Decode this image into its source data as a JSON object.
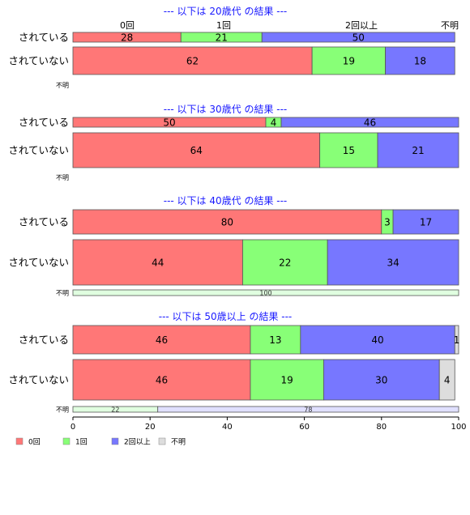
{
  "chart_data": {
    "type": "bar",
    "orientation": "horizontal-stacked-percent",
    "categories": [
      "0回",
      "1回",
      "2回以上",
      "不明"
    ],
    "colors": {
      "0回": "#ff7777",
      "1回": "#88ff77",
      "2回以上": "#7777ff",
      "不明": "#dddddd"
    },
    "xlim": [
      0,
      100
    ],
    "xticks": [
      0,
      20,
      40,
      60,
      80,
      100
    ],
    "legend_position": "bottom-left",
    "legend": [
      {
        "name": "0回",
        "color": "#ff7777"
      },
      {
        "name": "1回",
        "color": "#88ff77"
      },
      {
        "name": "2回以上",
        "color": "#7777ff"
      },
      {
        "name": "不明",
        "color": "#dddddd"
      }
    ],
    "panels": [
      {
        "title": "--- 以下は 20歳代 の結果 ---",
        "category_header": [
          "0回",
          "1回",
          "2回以上",
          "不明"
        ],
        "rows": [
          {
            "label": "されている",
            "values": [
              28,
              21,
              50,
              0
            ]
          },
          {
            "label": "されていない",
            "values": [
              62,
              19,
              18,
              0
            ]
          },
          {
            "label": "不明",
            "values": [],
            "small": true
          }
        ]
      },
      {
        "title": "--- 以下は 30歳代 の結果 ---",
        "rows": [
          {
            "label": "されている",
            "values": [
              50,
              4,
              46,
              0
            ]
          },
          {
            "label": "されていない",
            "values": [
              64,
              15,
              21,
              0
            ]
          },
          {
            "label": "不明",
            "values": [],
            "small": true
          }
        ]
      },
      {
        "title": "--- 以下は 40歳代 の結果 ---",
        "rows": [
          {
            "label": "されている",
            "values": [
              80,
              3,
              17,
              0
            ]
          },
          {
            "label": "されていない",
            "values": [
              44,
              22,
              34,
              0
            ]
          },
          {
            "label": "不明",
            "values": [
              100
            ],
            "small": true,
            "single_color": "#e0ffe0"
          }
        ]
      },
      {
        "title": "--- 以下は 50歳以上 の結果 ---",
        "rows": [
          {
            "label": "されている",
            "values": [
              46,
              13,
              40,
              1
            ]
          },
          {
            "label": "されていない",
            "values": [
              46,
              19,
              30,
              4
            ]
          },
          {
            "label": "不明",
            "values": [
              22,
              78
            ],
            "small": true,
            "colors": [
              "#e0ffe0",
              "#e0e0ff"
            ]
          }
        ]
      }
    ]
  }
}
